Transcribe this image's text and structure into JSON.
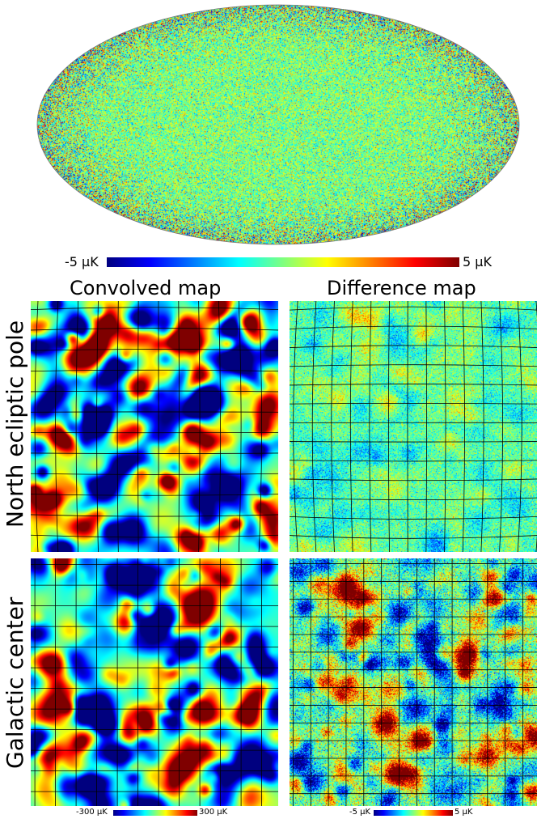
{
  "colormap": {
    "name": "jet",
    "stops": [
      "#00007f",
      "#0000ff",
      "#007fff",
      "#00ffff",
      "#7fff7f",
      "#ffff00",
      "#ff7f00",
      "#ff0000",
      "#7f0000"
    ]
  },
  "full_sky": {
    "projection": "Mollweide",
    "colorbar": {
      "min_label": "-5 µK",
      "max_label": "5 µK"
    }
  },
  "columns": {
    "left_title": "Convolved map",
    "right_title": "Difference map"
  },
  "rows": {
    "top_title": "North ecliptic pole",
    "bottom_title": "Galactic center"
  },
  "bottom_colorbars": {
    "convolved": {
      "min_label": "-300 µK",
      "max_label": "300 µK"
    },
    "difference": {
      "min_label": "-5 µK",
      "max_label": "5 µK"
    }
  }
}
